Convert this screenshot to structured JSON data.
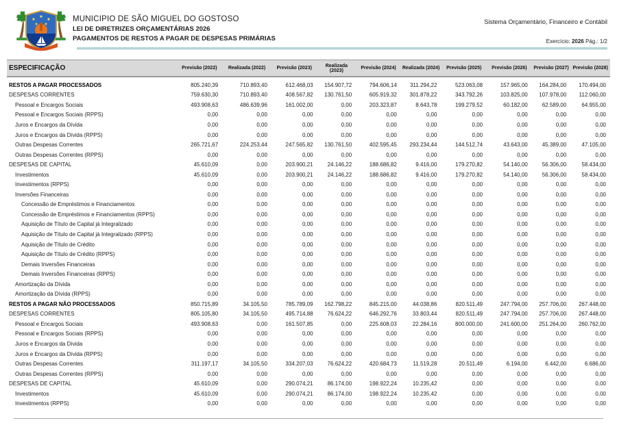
{
  "header": {
    "municipality": "MUNICIPIO DE SÃO MIGUEL DO GOSTOSO",
    "law": "LEI DE DIRETRIZES ORÇAMENTÁRIAS 2026",
    "report": "PAGAMENTOS DE RESTOS A PAGAR DE DESPESAS PRIMÁRIAS",
    "system": "Sistema Orçamentário, Financeiro e Contábil",
    "exercise_label": "Exercício:",
    "exercise_value": "2026",
    "page_label": "Pág.: 1/2"
  },
  "colors": {
    "accent_line": "#b2d4da",
    "table_header_bg": "#d9d9d9",
    "border_gray": "#9a9a9a"
  },
  "table": {
    "spec_header": "ESPECIFICAÇÃO",
    "columns": [
      "Previsão (2022)",
      "Realizada (2022)",
      "Previsão (2023)",
      "Realizada (2023)",
      "Previsão (2024)",
      "Realizada (2024)",
      "Previsão (2025)",
      "Previsão (2026)",
      "Previsão (2027)",
      "Previsão (2028)"
    ],
    "rows": [
      {
        "label": "RESTOS A PAGAR PROCESSADOS",
        "indent": 0,
        "bold": true,
        "values": [
          "805.240,39",
          "710.893,40",
          "612.468,03",
          "154.907,72",
          "794.606,14",
          "311.294,22",
          "523.063,08",
          "157.965,00",
          "164.284,00",
          "170.494,00"
        ]
      },
      {
        "label": "DESPESAS CORRENTES",
        "indent": 0,
        "bold": false,
        "values": [
          "759.630,30",
          "710.893,40",
          "408.567,82",
          "130.761,50",
          "605.919,32",
          "301.878,22",
          "343.792,26",
          "103.825,00",
          "107.978,00",
          "112.060,00"
        ]
      },
      {
        "label": "Pessoal e Encargos Sociais",
        "indent": 1,
        "bold": false,
        "values": [
          "493.908,63",
          "486.639,96",
          "161.002,00",
          "0,00",
          "203.323,87",
          "8.643,78",
          "199.279,52",
          "60.182,00",
          "62.589,00",
          "64.955,00"
        ]
      },
      {
        "label": "Pessoal e Encargos Sociais (RPPS)",
        "indent": 1,
        "bold": false,
        "values": [
          "0,00",
          "0,00",
          "0,00",
          "0,00",
          "0,00",
          "0,00",
          "0,00",
          "0,00",
          "0,00",
          "0,00"
        ]
      },
      {
        "label": "Juros e Encargos da Dívida",
        "indent": 1,
        "bold": false,
        "values": [
          "0,00",
          "0,00",
          "0,00",
          "0,00",
          "0,00",
          "0,00",
          "0,00",
          "0,00",
          "0,00",
          "0,00"
        ]
      },
      {
        "label": "Juros e Encargos da Dívida (RPPS)",
        "indent": 1,
        "bold": false,
        "values": [
          "0,00",
          "0,00",
          "0,00",
          "0,00",
          "0,00",
          "0,00",
          "0,00",
          "0,00",
          "0,00",
          "0,00"
        ]
      },
      {
        "label": "Outras Despesas Correntes",
        "indent": 1,
        "bold": false,
        "values": [
          "265.721,67",
          "224.253,44",
          "247.565,82",
          "130.761,50",
          "402.595,45",
          "293.234,44",
          "144.512,74",
          "43.643,00",
          "45.389,00",
          "47.105,00"
        ]
      },
      {
        "label": "Outras Despesas Correntes (RPPS)",
        "indent": 1,
        "bold": false,
        "values": [
          "0,00",
          "0,00",
          "0,00",
          "0,00",
          "0,00",
          "0,00",
          "0,00",
          "0,00",
          "0,00",
          "0,00"
        ]
      },
      {
        "label": "DESPESAS DE CAPITAL",
        "indent": 0,
        "bold": false,
        "values": [
          "45.610,09",
          "0,00",
          "203.900,21",
          "24.146,22",
          "188.686,82",
          "9.416,00",
          "179.270,82",
          "54.140,00",
          "56.306,00",
          "58.434,00"
        ]
      },
      {
        "label": "Investimentos",
        "indent": 1,
        "bold": false,
        "values": [
          "45.610,09",
          "0,00",
          "203.900,21",
          "24.146,22",
          "188.686,82",
          "9.416,00",
          "179.270,82",
          "54.140,00",
          "56.306,00",
          "58.434,00"
        ]
      },
      {
        "label": "Investimentos (RPPS)",
        "indent": 1,
        "bold": false,
        "values": [
          "0,00",
          "0,00",
          "0,00",
          "0,00",
          "0,00",
          "0,00",
          "0,00",
          "0,00",
          "0,00",
          "0,00"
        ]
      },
      {
        "label": "Inversões Financeiras",
        "indent": 1,
        "bold": false,
        "values": [
          "0,00",
          "0,00",
          "0,00",
          "0,00",
          "0,00",
          "0,00",
          "0,00",
          "0,00",
          "0,00",
          "0,00"
        ]
      },
      {
        "label": "Concessão de Empréstimos e Financiamentos",
        "indent": 2,
        "bold": false,
        "values": [
          "0,00",
          "0,00",
          "0,00",
          "0,00",
          "0,00",
          "0,00",
          "0,00",
          "0,00",
          "0,00",
          "0,00"
        ]
      },
      {
        "label": "Concessão de Empréstimos e Financiamentos (RPPS)",
        "indent": 2,
        "bold": false,
        "values": [
          "0,00",
          "0,00",
          "0,00",
          "0,00",
          "0,00",
          "0,00",
          "0,00",
          "0,00",
          "0,00",
          "0,00"
        ]
      },
      {
        "label": "Aquisição de Título de Capital já Integralizado",
        "indent": 2,
        "bold": false,
        "values": [
          "0,00",
          "0,00",
          "0,00",
          "0,00",
          "0,00",
          "0,00",
          "0,00",
          "0,00",
          "0,00",
          "0,00"
        ]
      },
      {
        "label": "Aquisição de Título de Capital já Integralizado (RPPS)",
        "indent": 2,
        "bold": false,
        "values": [
          "0,00",
          "0,00",
          "0,00",
          "0,00",
          "0,00",
          "0,00",
          "0,00",
          "0,00",
          "0,00",
          "0,00"
        ]
      },
      {
        "label": "Aquisição de Título de Crédito",
        "indent": 2,
        "bold": false,
        "values": [
          "0,00",
          "0,00",
          "0,00",
          "0,00",
          "0,00",
          "0,00",
          "0,00",
          "0,00",
          "0,00",
          "0,00"
        ]
      },
      {
        "label": "Aquisição de Título de Crédito (RPPS)",
        "indent": 2,
        "bold": false,
        "values": [
          "0,00",
          "0,00",
          "0,00",
          "0,00",
          "0,00",
          "0,00",
          "0,00",
          "0,00",
          "0,00",
          "0,00"
        ]
      },
      {
        "label": "Demais Inversões Financeiras",
        "indent": 2,
        "bold": false,
        "values": [
          "0,00",
          "0,00",
          "0,00",
          "0,00",
          "0,00",
          "0,00",
          "0,00",
          "0,00",
          "0,00",
          "0,00"
        ]
      },
      {
        "label": "Demais Inversões Financeiras (RPPS)",
        "indent": 2,
        "bold": false,
        "values": [
          "0,00",
          "0,00",
          "0,00",
          "0,00",
          "0,00",
          "0,00",
          "0,00",
          "0,00",
          "0,00",
          "0,00"
        ]
      },
      {
        "label": "Amortização da Dívida",
        "indent": 1,
        "bold": false,
        "values": [
          "0,00",
          "0,00",
          "0,00",
          "0,00",
          "0,00",
          "0,00",
          "0,00",
          "0,00",
          "0,00",
          "0,00"
        ]
      },
      {
        "label": "Amortização da Dívida (RPPS)",
        "indent": 1,
        "bold": false,
        "values": [
          "0,00",
          "0,00",
          "0,00",
          "0,00",
          "0,00",
          "0,00",
          "0,00",
          "0,00",
          "0,00",
          "0,00"
        ]
      },
      {
        "label": "RESTOS A PAGAR NÃO PROCESSADOS",
        "indent": 0,
        "bold": true,
        "values": [
          "850.715,89",
          "34.105,50",
          "785.789,09",
          "162.798,22",
          "845.215,00",
          "44.038,86",
          "820.511,49",
          "247.794,00",
          "257.706,00",
          "267.448,00"
        ]
      },
      {
        "label": "DESPESAS CORRENTES",
        "indent": 0,
        "bold": false,
        "values": [
          "805.105,80",
          "34.105,50",
          "495.714,88",
          "76.624,22",
          "646.292,76",
          "33.803,44",
          "820.511,49",
          "247.794,00",
          "257.706,00",
          "267.448,00"
        ]
      },
      {
        "label": "Pessoal e Encargos Sociais",
        "indent": 1,
        "bold": false,
        "values": [
          "493.908,63",
          "0,00",
          "161.507,85",
          "0,00",
          "225.608,03",
          "22.284,16",
          "800.000,00",
          "241.600,00",
          "251.264,00",
          "260.762,00"
        ]
      },
      {
        "label": "Pessoal e Encargos Sociais (RPPS)",
        "indent": 1,
        "bold": false,
        "values": [
          "0,00",
          "0,00",
          "0,00",
          "0,00",
          "0,00",
          "0,00",
          "0,00",
          "0,00",
          "0,00",
          "0,00"
        ]
      },
      {
        "label": "Juros e Encargos da Dívida",
        "indent": 1,
        "bold": false,
        "values": [
          "0,00",
          "0,00",
          "0,00",
          "0,00",
          "0,00",
          "0,00",
          "0,00",
          "0,00",
          "0,00",
          "0,00"
        ]
      },
      {
        "label": "Juros e Encargos da Dívida (RPPS)",
        "indent": 1,
        "bold": false,
        "values": [
          "0,00",
          "0,00",
          "0,00",
          "0,00",
          "0,00",
          "0,00",
          "0,00",
          "0,00",
          "0,00",
          "0,00"
        ]
      },
      {
        "label": "Outras Despesas Correntes",
        "indent": 1,
        "bold": false,
        "values": [
          "311.197,17",
          "34.105,50",
          "334.207,03",
          "76.624,22",
          "420.684,73",
          "11.519,28",
          "20.511,49",
          "6.194,00",
          "6.442,00",
          "6.686,00"
        ]
      },
      {
        "label": "Outras Despesas Correntes (RPPS)",
        "indent": 1,
        "bold": false,
        "values": [
          "0,00",
          "0,00",
          "0,00",
          "0,00",
          "0,00",
          "0,00",
          "0,00",
          "0,00",
          "0,00",
          "0,00"
        ]
      },
      {
        "label": "DESPESAS DE CAPITAL",
        "indent": 0,
        "bold": false,
        "values": [
          "45.610,09",
          "0,00",
          "290.074,21",
          "86.174,00",
          "198.922,24",
          "10.235,42",
          "0,00",
          "0,00",
          "0,00",
          "0,00"
        ]
      },
      {
        "label": "Investimentos",
        "indent": 1,
        "bold": false,
        "values": [
          "45.610,09",
          "0,00",
          "290.074,21",
          "86.174,00",
          "198.922,24",
          "10.235,42",
          "0,00",
          "0,00",
          "0,00",
          "0,00"
        ]
      },
      {
        "label": "Investimentos (RPPS)",
        "indent": 1,
        "bold": false,
        "values": [
          "0,00",
          "0,00",
          "0,00",
          "0,00",
          "0,00",
          "0,00",
          "0,00",
          "0,00",
          "0,00",
          "0,00"
        ]
      }
    ]
  }
}
